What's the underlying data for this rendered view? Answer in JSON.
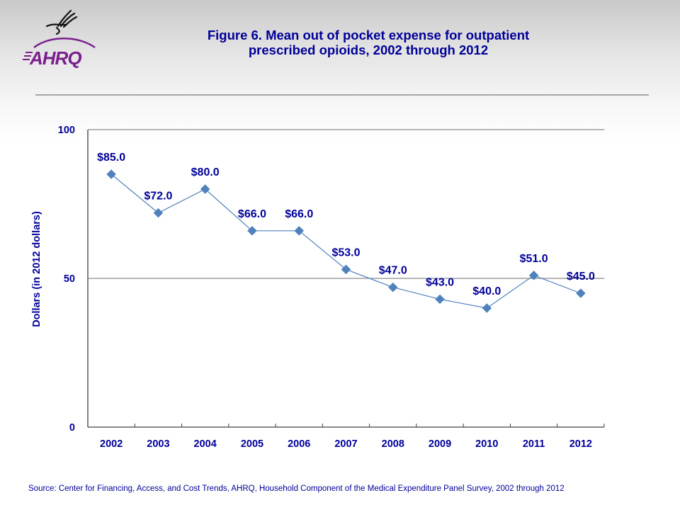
{
  "logo": {
    "name": "AHRQ",
    "emblem": "HHS eagle emblem"
  },
  "title_lines": [
    "Figure 6. Mean out of pocket expense for outpatient",
    "prescribed opioids, 2002 through 2012"
  ],
  "source": "Source: Center for Financing, Access, and Cost Trends, AHRQ, Household Component of the Medical Expenditure Panel Survey,  2002 through 2012",
  "colors": {
    "text": "#000099",
    "series": "#4f81bd",
    "logo": "#7a1f8e"
  },
  "chart_data": {
    "type": "line",
    "title": "Figure 6. Mean out of pocket expense for outpatient prescribed opioids, 2002 through 2012",
    "xlabel": "",
    "ylabel": "Dollars (in 2012 dollars)",
    "categories": [
      "2002",
      "2003",
      "2004",
      "2005",
      "2006",
      "2007",
      "2008",
      "2009",
      "2010",
      "2011",
      "2012"
    ],
    "series": [
      {
        "name": "Mean out of pocket expense",
        "values": [
          85.0,
          72.0,
          80.0,
          66.0,
          66.0,
          53.0,
          47.0,
          43.0,
          40.0,
          51.0,
          45.0
        ],
        "labels": [
          "$85.0",
          "$72.0",
          "$80.0",
          "$66.0",
          "$66.0",
          "$53.0",
          "$47.0",
          "$43.0",
          "$40.0",
          "$51.0",
          "$45.0"
        ],
        "marker": "diamond"
      }
    ],
    "ylim": [
      0,
      100
    ],
    "yticks": [
      0,
      50,
      100
    ],
    "ytick_labels": [
      "0",
      "50",
      "100"
    ],
    "grid": "horizontal at 50",
    "legend": "none"
  }
}
